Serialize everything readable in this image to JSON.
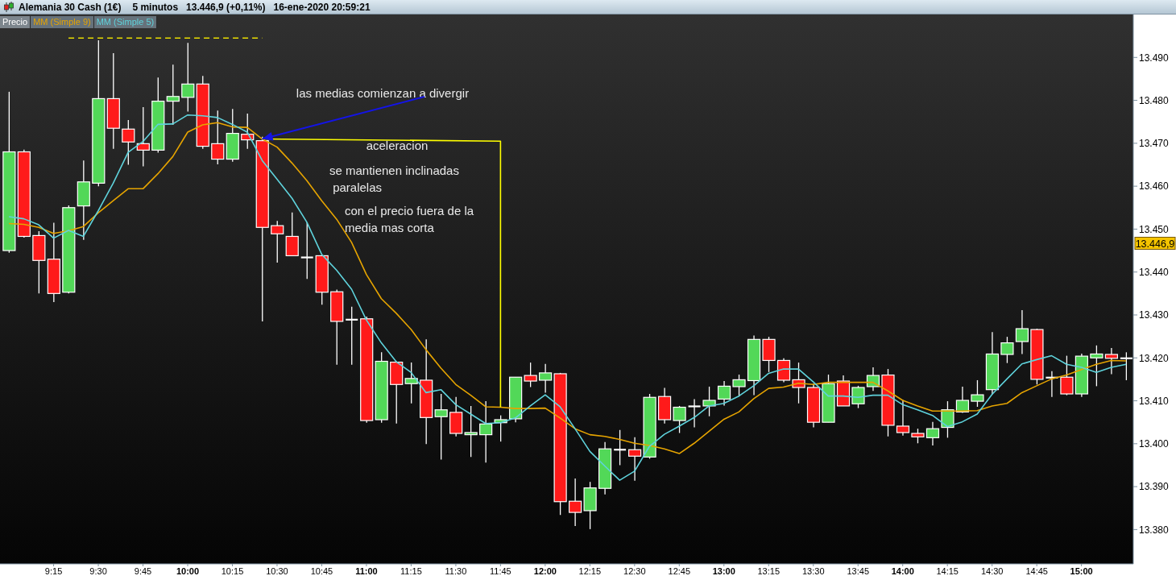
{
  "chart_data": {
    "type": "candlestick",
    "title": "Alemania 30 Cash (1€)",
    "subtitle": "5 minutos   13.446,9 (+0,11%)   16-ene-2020 20:59:21",
    "x": [
      9,
      9.0833,
      9.1667,
      9.25,
      9.3333,
      9.4167,
      9.5,
      9.5833,
      9.6667,
      9.75,
      9.8333,
      9.9167,
      10,
      10.0833,
      10.1667,
      10.25,
      10.3333,
      10.4167,
      10.5,
      10.5833,
      10.6667,
      10.75,
      10.8333,
      10.9167,
      11,
      11.0833,
      11.1667,
      11.25,
      11.3333,
      11.4167,
      11.5,
      11.5833,
      11.6667,
      11.75,
      11.8333,
      11.9167,
      12,
      12.0833,
      12.1667,
      12.25,
      12.3333,
      12.4167,
      12.5,
      12.5833,
      12.6667,
      12.75,
      12.8333,
      12.9167,
      13,
      13.0833,
      13.1667,
      13.25,
      13.3333,
      13.4167,
      13.5,
      13.5833,
      13.6667,
      13.75,
      13.8333,
      13.9167,
      14,
      14.0833,
      14.1667,
      14.25,
      14.3333,
      14.4167,
      14.5,
      14.5833,
      14.6667,
      14.75,
      14.8333,
      14.9167,
      15,
      15.0833,
      15.1667,
      15.25
    ],
    "series": [
      {
        "name": "Precio",
        "color": "#ffffff",
        "ohlc": [
          [
            13445,
            13482,
            13444.5,
            13468
          ],
          [
            13468,
            13468.5,
            13448,
            13448.3
          ],
          [
            13448.5,
            13449.5,
            13435,
            13442.7
          ],
          [
            13443,
            13451.5,
            13433,
            13435
          ],
          [
            13435.3,
            13455.5,
            13435,
            13455
          ],
          [
            13455.4,
            13466,
            13447.5,
            13461
          ],
          [
            13460.7,
            13494,
            13460,
            13480.4
          ],
          [
            13480.4,
            13491,
            13468.7,
            13473.5
          ],
          [
            13473.3,
            13475.4,
            13465,
            13470.3
          ],
          [
            13469.9,
            13478.4,
            13464.6,
            13468.4
          ],
          [
            13468.4,
            13485.3,
            13467.8,
            13479.8
          ],
          [
            13479.8,
            13488.3,
            13474.3,
            13480.9
          ],
          [
            13480.7,
            13493.4,
            13477.4,
            13483.8
          ],
          [
            13483.8,
            13485.7,
            13468.7,
            13469.3
          ],
          [
            13469.9,
            13477.6,
            13465.1,
            13466.3
          ],
          [
            13466.3,
            13478,
            13465.7,
            13472.3
          ],
          [
            13472.1,
            13476.9,
            13468.7,
            13470.8
          ],
          [
            13470.6,
            13471.5,
            13428.5,
            13450.4
          ],
          [
            13450.8,
            13451.9,
            13442.2,
            13448.9
          ],
          [
            13448.3,
            13453.9,
            13443.8,
            13443.8
          ],
          [
            13443.4,
            13451.6,
            13438.4,
            13443.4
          ],
          [
            13443.8,
            13443.8,
            13432.4,
            13435.3
          ],
          [
            13435.4,
            13435.9,
            13418.4,
            13428.5
          ],
          [
            13428.9,
            13431.9,
            13418.4,
            13428.9
          ],
          [
            13429.1,
            13429.6,
            13404.9,
            13405.4
          ],
          [
            13405.6,
            13421.3,
            13404.9,
            13419.2
          ],
          [
            13419,
            13419.2,
            13404.7,
            13413.8
          ],
          [
            13414,
            13418.9,
            13409.4,
            13415.2
          ],
          [
            13414.8,
            13424.3,
            13399.9,
            13406.1
          ],
          [
            13406.3,
            13411.6,
            13396.3,
            13407.9
          ],
          [
            13407.3,
            13410.9,
            13401.7,
            13402.4
          ],
          [
            13402.1,
            13408.8,
            13396.9,
            13402.6
          ],
          [
            13402.1,
            13409.9,
            13395.6,
            13404.6
          ],
          [
            13404.9,
            13406.6,
            13400.5,
            13405.6
          ],
          [
            13405.8,
            13415.5,
            13405,
            13415.5
          ],
          [
            13415.9,
            13418.9,
            13413.2,
            13414.6
          ],
          [
            13414.8,
            13418.6,
            13411.9,
            13416.5
          ],
          [
            13416.3,
            13416.5,
            13383.4,
            13386.5
          ],
          [
            13386.6,
            13391.9,
            13380.8,
            13384
          ],
          [
            13384.4,
            13391.1,
            13380.1,
            13389.7
          ],
          [
            13389.6,
            13400.4,
            13388.2,
            13398.8
          ],
          [
            13398.6,
            13403.2,
            13395,
            13398.6
          ],
          [
            13398.6,
            13401.5,
            13391.4,
            13397.1
          ],
          [
            13396.9,
            13411.6,
            13396.5,
            13410.8
          ],
          [
            13411,
            13413,
            13404.7,
            13405.6
          ],
          [
            13405.4,
            13408.8,
            13402.5,
            13408.5
          ],
          [
            13408.7,
            13410.4,
            13403.8,
            13408.7
          ],
          [
            13408.8,
            13413.3,
            13406.4,
            13410.1
          ],
          [
            13410.4,
            13414.6,
            13408.9,
            13413.4
          ],
          [
            13413.3,
            13416.1,
            13411,
            13414.9
          ],
          [
            13414.7,
            13425.2,
            13411.3,
            13424.3
          ],
          [
            13424.3,
            13424.9,
            13416.7,
            13419.4
          ],
          [
            13419.4,
            13419.9,
            13414.3,
            13414.8
          ],
          [
            13414.9,
            13418.9,
            13409.4,
            13413.1
          ],
          [
            13413.1,
            13414,
            13403.8,
            13405
          ],
          [
            13405,
            13416.1,
            13405,
            13414
          ],
          [
            13414.6,
            13415.9,
            13408.8,
            13408.8
          ],
          [
            13409.3,
            13413.5,
            13408.3,
            13413.1
          ],
          [
            13413.3,
            13417.8,
            13412.3,
            13415.9
          ],
          [
            13416,
            13417.4,
            13401.7,
            13404.3
          ],
          [
            13404.1,
            13410.2,
            13401.9,
            13402.6
          ],
          [
            13402.4,
            13403.5,
            13400.1,
            13401.6
          ],
          [
            13401.4,
            13405.1,
            13399.6,
            13403.5
          ],
          [
            13403.8,
            13409.9,
            13401.4,
            13407.9
          ],
          [
            13407.4,
            13413.3,
            13407.2,
            13410.1
          ],
          [
            13409.9,
            13414.8,
            13408.6,
            13411.4
          ],
          [
            13412.6,
            13426,
            13411.5,
            13420.9
          ],
          [
            13420.8,
            13424.9,
            13418.8,
            13423.5
          ],
          [
            13423.8,
            13431.1,
            13420.9,
            13426.8
          ],
          [
            13426.6,
            13426.8,
            13413.8,
            13415
          ],
          [
            13415.4,
            13416.9,
            13410.9,
            13415.4
          ],
          [
            13415.5,
            13420.5,
            13411.3,
            13411.6
          ],
          [
            13411.6,
            13421,
            13410.9,
            13420.4
          ],
          [
            13420,
            13422.9,
            13413.4,
            13420.9
          ],
          [
            13420.8,
            13422.3,
            13416.2,
            13419.9
          ],
          [
            13419.9,
            13421.3,
            13414.8,
            13419.9
          ]
        ],
        "colors": [
          "#52d858",
          "#ff1a1a",
          "#ff1a1a",
          "#ff1a1a",
          "#52d858",
          "#52d858",
          "#52d858",
          "#ff1a1a",
          "#ff1a1a",
          "#ff1a1a",
          "#52d858",
          "#52d858",
          "#52d858",
          "#ff1a1a",
          "#ff1a1a",
          "#52d858",
          "#ff1a1a",
          "#ff1a1a",
          "#ff1a1a",
          "#ff1a1a",
          "#ffffff",
          "#ff1a1a",
          "#ff1a1a",
          "#ffffff",
          "#ff1a1a",
          "#52d858",
          "#ff1a1a",
          "#52d858",
          "#ff1a1a",
          "#52d858",
          "#ff1a1a",
          "#52d858",
          "#52d858",
          "#52d858",
          "#52d858",
          "#ff1a1a",
          "#52d858",
          "#ff1a1a",
          "#ff1a1a",
          "#52d858",
          "#52d858",
          "#ffffff",
          "#ff1a1a",
          "#52d858",
          "#ff1a1a",
          "#52d858",
          "#ffffff",
          "#52d858",
          "#52d858",
          "#52d858",
          "#52d858",
          "#ff1a1a",
          "#ff1a1a",
          "#ff1a1a",
          "#ff1a1a",
          "#52d858",
          "#ff1a1a",
          "#52d858",
          "#52d858",
          "#ff1a1a",
          "#ff1a1a",
          "#ff1a1a",
          "#52d858",
          "#52d858",
          "#52d858",
          "#52d858",
          "#52d858",
          "#52d858",
          "#52d858",
          "#ff1a1a",
          "#ffffff",
          "#ff1a1a",
          "#52d858",
          "#52d858",
          "#ff1a1a",
          "#ffffff"
        ]
      },
      {
        "name": "MM (Simple 9)",
        "type": "line",
        "color": "#e6a400",
        "values": [
          13451.3,
          13451.1,
          13450.4,
          13449.0,
          13449.6,
          13450.6,
          13453.8,
          13456.6,
          13459.4,
          13459.4,
          13462.9,
          13466.9,
          13472.6,
          13474.3,
          13474.8,
          13473.8,
          13473.7,
          13471.0,
          13469.1,
          13465.4,
          13461.3,
          13456.6,
          13452.3,
          13446.9,
          13439.4,
          13433.8,
          13430.4,
          13426.6,
          13421.9,
          13417.6,
          13413.8,
          13411.3,
          13408.6,
          13408.5,
          13408.2,
          13408.2,
          13408.3,
          13406.0,
          13403.5,
          13402.1,
          13401.7,
          13401.0,
          13400.1,
          13399.6,
          13398.8,
          13397.7,
          13400.1,
          13402.9,
          13405.7,
          13407.4,
          13410.5,
          13412.9,
          13413.2,
          13414.1,
          13413.8,
          13414.3,
          13414.3,
          13414.3,
          13414.3,
          13412.3,
          13410.1,
          13408.8,
          13407.6,
          13407.6,
          13407.6,
          13407.7,
          13408.8,
          13409.4,
          13411.9,
          13413.5,
          13415.1,
          13416.0,
          13417.3,
          13418.5,
          13419.4,
          13419.3
        ]
      },
      {
        "name": "MM (Simple 5)",
        "type": "line",
        "color": "#5fd3dc",
        "values": [
          13452.9,
          13452.4,
          13451.0,
          13447.9,
          13449.7,
          13448.3,
          13454.3,
          13460.7,
          13467.9,
          13470.4,
          13474.4,
          13474.5,
          13476.6,
          13476.4,
          13476.0,
          13474.4,
          13472.6,
          13466.0,
          13461.6,
          13457.2,
          13451.6,
          13444.1,
          13440.4,
          13436.0,
          13428.8,
          13423.5,
          13419.1,
          13416.6,
          13411.9,
          13412.6,
          13409.1,
          13406.9,
          13404.7,
          13404.9,
          13406.0,
          13408.8,
          13411.4,
          13408.6,
          13403.5,
          13398.2,
          13394.8,
          13391.5,
          13393.6,
          13399.4,
          13402.2,
          13404.1,
          13406.1,
          13408.8,
          13409.4,
          13411.1,
          13413.5,
          13416.4,
          13417.4,
          13417.4,
          13414.4,
          13411.1,
          13411.1,
          13410.8,
          13411.3,
          13411.3,
          13409.1,
          13407.9,
          13406.6,
          13404.0,
          13405.1,
          13406.9,
          13411.5,
          13415.1,
          13418.6,
          13419.6,
          13420.5,
          13418.5,
          13417.8,
          13416.6,
          13417.8,
          13418.5
        ]
      },
      {
        "type": "line",
        "x": [
          9.3333,
          10.4167
        ],
        "values": [
          13494.5,
          13494.5
        ],
        "color": "#e8dc00",
        "line_style": "dashed"
      },
      {
        "type": "line",
        "x": [
          10.4167,
          11.75,
          11.75
        ],
        "values": [
          13471,
          13470.5,
          13408.5
        ],
        "color": "#ffff00"
      }
    ],
    "xlim": [
      8.95,
      15.29
    ],
    "ylim": [
      13372,
      13500
    ],
    "xticks": [
      {
        "value": 9.25,
        "label": "9:15"
      },
      {
        "value": 9.5,
        "label": "9:30"
      },
      {
        "value": 9.75,
        "label": "9:45"
      },
      {
        "value": 10,
        "label": "10:00"
      },
      {
        "value": 10.25,
        "label": "10:15"
      },
      {
        "value": 10.5,
        "label": "10:30"
      },
      {
        "value": 10.75,
        "label": "10:45"
      },
      {
        "value": 11,
        "label": "11:00"
      },
      {
        "value": 11.25,
        "label": "11:15"
      },
      {
        "value": 11.5,
        "label": "11:30"
      },
      {
        "value": 11.75,
        "label": "11:45"
      },
      {
        "value": 12,
        "label": "12:00"
      },
      {
        "value": 12.25,
        "label": "12:15"
      },
      {
        "value": 12.5,
        "label": "12:30"
      },
      {
        "value": 12.75,
        "label": "12:45"
      },
      {
        "value": 13,
        "label": "13:00"
      },
      {
        "value": 13.25,
        "label": "13:15"
      },
      {
        "value": 13.5,
        "label": "13:30"
      },
      {
        "value": 13.75,
        "label": "13:45"
      },
      {
        "value": 14,
        "label": "14:00"
      },
      {
        "value": 14.25,
        "label": "14:15"
      },
      {
        "value": 14.5,
        "label": "14:30"
      },
      {
        "value": 14.75,
        "label": "14:45"
      },
      {
        "value": 15,
        "label": "15:00"
      }
    ],
    "yticks": [
      {
        "value": 13380,
        "label": "13.380"
      },
      {
        "value": 13390,
        "label": "13.390"
      },
      {
        "value": 13400,
        "label": "13.400"
      },
      {
        "value": 13410,
        "label": "13.410"
      },
      {
        "value": 13420,
        "label": "13.420"
      },
      {
        "value": 13430,
        "label": "13.430"
      },
      {
        "value": 13440,
        "label": "13.440"
      },
      {
        "value": 13450,
        "label": "13.450"
      },
      {
        "value": 13460,
        "label": "13.460"
      },
      {
        "value": 13470,
        "label": "13.470"
      },
      {
        "value": 13480,
        "label": "13.480"
      },
      {
        "value": 13490,
        "label": "13.490"
      }
    ],
    "legend": "top left",
    "annotations": [
      {
        "text": "las medias comienzan a divergir",
        "x": 10.4167,
        "y": 13471
      },
      "aceleracion",
      "se mantienen inclinadas\n paralelas",
      "con el precio fuera de la\nmedia mas corta",
      "13.446,9"
    ]
  }
}
